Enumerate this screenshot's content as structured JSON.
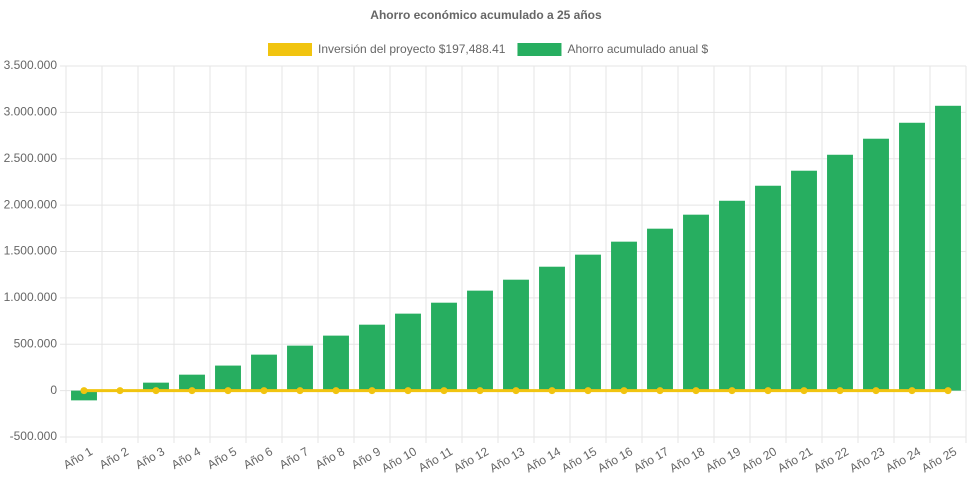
{
  "chart_data": {
    "type": "bar-line",
    "title": "Ahorro económico acumulado a 25 años",
    "categories": [
      "Año 1",
      "Año 2",
      "Año 3",
      "Año 4",
      "Año 5",
      "Año 6",
      "Año 7",
      "Año 8",
      "Año 9",
      "Año 10",
      "Año 11",
      "Año 12",
      "Año 13",
      "Año 14",
      "Año 15",
      "Año 16",
      "Año 17",
      "Año 18",
      "Año 19",
      "Año 20",
      "Año 21",
      "Año 22",
      "Año 23",
      "Año 24",
      "Año 25"
    ],
    "series": [
      {
        "name": "Inversión del proyecto $197,488.41",
        "type": "line",
        "color": "#f1c40f",
        "values": [
          0,
          0,
          0,
          0,
          0,
          0,
          0,
          0,
          0,
          0,
          0,
          0,
          0,
          0,
          0,
          0,
          0,
          0,
          0,
          0,
          0,
          0,
          0,
          0,
          0
        ]
      },
      {
        "name": "Ahorro acumulado anual $",
        "type": "bar",
        "color": "#27ae60",
        "values": [
          -105000,
          -5000,
          86000,
          172000,
          270000,
          388000,
          485000,
          593000,
          711000,
          830000,
          948000,
          1078000,
          1196000,
          1336000,
          1466000,
          1606000,
          1746000,
          1897000,
          2047000,
          2209000,
          2371000,
          2543000,
          2716000,
          2888000,
          3071000
        ]
      }
    ],
    "ylim": [
      -500000,
      3500000
    ],
    "yticks": [
      {
        "value": -500000,
        "label": "-500.000"
      },
      0,
      {
        "value": 500000,
        "label": "500.000"
      },
      {
        "value": 1000000,
        "label": "1.000.000"
      },
      {
        "value": 1500000,
        "label": "1.500.000"
      },
      {
        "value": 2000000,
        "label": "2.000.000"
      },
      {
        "value": 2500000,
        "label": "2.500.000"
      },
      {
        "value": 3000000,
        "label": "3.000.000"
      },
      {
        "value": 3500000,
        "label": "3.500.000"
      }
    ],
    "grid": true
  }
}
